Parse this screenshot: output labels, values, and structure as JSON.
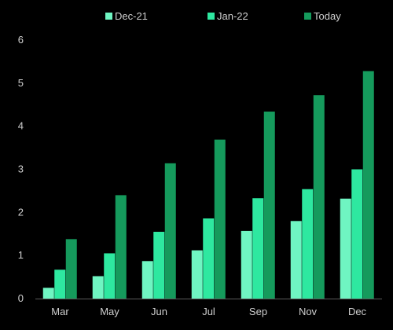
{
  "chart_data": {
    "type": "bar",
    "categories": [
      "Mar",
      "May",
      "Jun",
      "Jul",
      "Sep",
      "Nov",
      "Dec"
    ],
    "series": [
      {
        "name": "Dec-21",
        "color": "#6ff5c2",
        "values": [
          0.25,
          0.52,
          0.87,
          1.12,
          1.57,
          1.8,
          2.32
        ]
      },
      {
        "name": "Jan-22",
        "color": "#2ee8a0",
        "values": [
          0.67,
          1.05,
          1.55,
          1.86,
          2.33,
          2.54,
          3.0
        ]
      },
      {
        "name": "Today",
        "color": "#159a5c",
        "values": [
          1.38,
          2.4,
          3.14,
          3.69,
          4.34,
          4.72,
          5.28
        ]
      }
    ],
    "yticks": [
      0,
      1,
      2,
      3,
      4,
      5,
      6
    ],
    "ylim": [
      0,
      6
    ],
    "legend_position": "top",
    "grid": false,
    "title": "",
    "xlabel": "",
    "ylabel": ""
  }
}
